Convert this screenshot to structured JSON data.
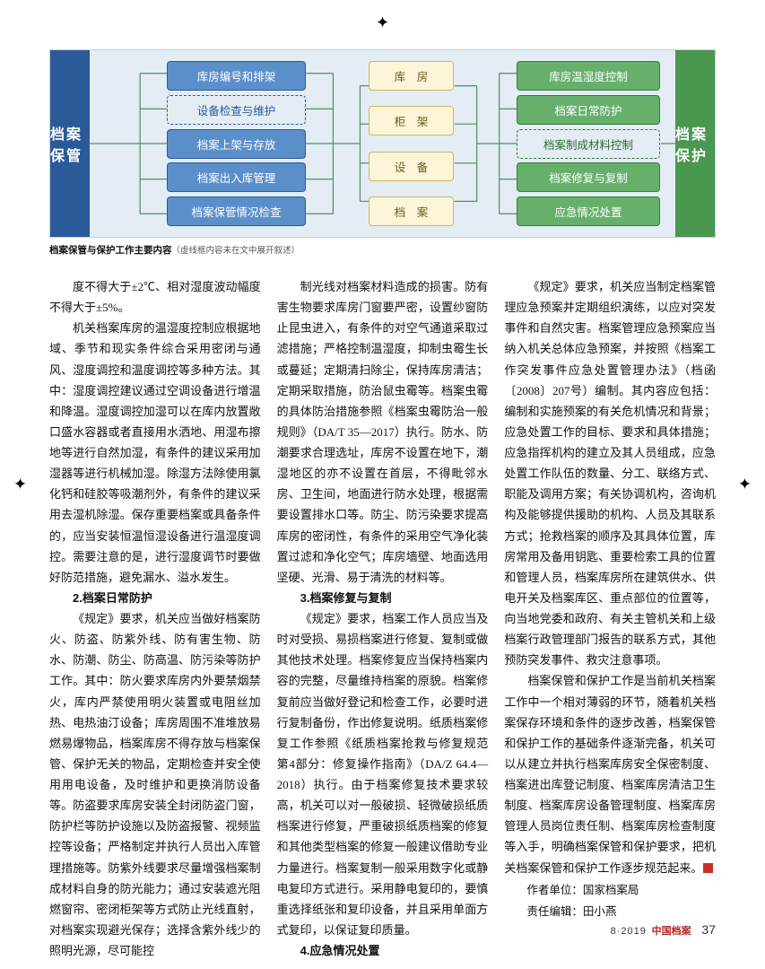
{
  "diagram": {
    "side_left": "档案保管",
    "side_right": "档案保护",
    "left_nodes": [
      "库房编号和排架",
      "设备检查与维护",
      "档案上架与存放",
      "档案出入库管理",
      "档案保管情况检查"
    ],
    "left_dashed": [
      false,
      true,
      false,
      false,
      false
    ],
    "mid_nodes": [
      "库　房",
      "柜　架",
      "设　备",
      "档　案"
    ],
    "right_nodes": [
      "库房温湿度控制",
      "档案日常防护",
      "档案制成材料控制",
      "档案修复与复制",
      "应急情况处置"
    ],
    "right_dashed": [
      false,
      false,
      true,
      false,
      false
    ],
    "colors": {
      "panel_bg": "#e3edf3",
      "panel_border": "#b8d4df",
      "blue": "#5b8fc9",
      "blue_border": "#2a5a98",
      "green": "#66b06c",
      "green_border": "#3a7a40",
      "yellow": "#fdf5d8",
      "yellow_border": "#c9b865",
      "line": "#5a8868"
    }
  },
  "caption": {
    "bold": "档案保管与保护工作主要内容",
    "note": "（虚线框内容未在文中展开叙述）"
  },
  "body": {
    "p0": "度不得大于±2℃、相对湿度波动幅度不得大于±5%。",
    "p1": "机关档案库房的温湿度控制应根据地域、季节和现实条件综合采用密闭与通风、湿度调控和温度调控等多种方法。其中：湿度调控建议通过空调设备进行增温和降温。湿度调控加湿可以在库内放置敞口盛水容器或者直接用水洒地、用湿布擦地等进行自然加湿，有条件的建议采用加湿器等进行机械加湿。除湿方法除使用氯化钙和硅胶等吸潮剂外，有条件的建议采用去湿机除湿。保存重要档案或具备条件的，应当安装恒温恒湿设备进行温湿度调控。需要注意的是，进行湿度调节时要做好防范措施，避免漏水、溢水发生。",
    "h2": "2.档案日常防护",
    "p2": "《规定》要求，机关应当做好档案防火、防盗、防紫外线、防有害生物、防水、防潮、防尘、防高温、防污染等防护工作。其中：防火要求库房内外要禁烟禁火，库内严禁使用明火装置或电阻丝加热、电热油汀设备；库房周围不准堆放易燃易爆物品，档案库房不得存放与档案保管、保护无关的物品，定期检查并安全使用用电设备，及时维护和更换消防设备等。防盗要求库房安装全封闭防盗门窗，防护栏等防护设施以及防盗报警、视频监控等设备；严格制定并执行人员出入库管理措施等。防紫外线要求尽量增强档案制成材料自身的防光能力；通过安装遮光阻燃窗帘、密闭柜架等方式防止光线直射，对档案实现避光保存；选择含紫外线少的照明光源，尽可能控",
    "p3": "制光线对档案材料造成的损害。防有害生物要求库房门窗要严密，设置纱窗防止昆虫进入，有条件的对空气通道采取过滤措施；严格控制温湿度，抑制虫霉生长或蔓延；定期清扫除尘，保持库房清洁；定期采取措施，防治鼠虫霉等。档案虫霉的具体防治措施参照《档案虫霉防治一般规则》（DA/T 35—2017）执行。防水、防潮要求合理选址，库房不设置在地下，潮湿地区的亦不设置在首层，不得毗邻水房、卫生间，地面进行防水处理，根据需要设置排水口等。防尘、防污染要求提高库房的密闭性，有条件的采用空气净化装置过滤和净化空气；库房墙壁、地面选用坚硬、光滑、易于清洗的材料等。",
    "h3": "3.档案修复与复制",
    "p4": "《规定》要求，档案工作人员应当及时对受损、易损档案进行修复、复制或做其他技术处理。档案修复应当保持档案内容的完整，尽量维持档案的原貌。档案修复前应当做好登记和检查工作，必要时进行复制备份，作出修复说明。纸质档案修复工作参照《纸质档案抢救与修复规范 第4部分：修复操作指南》（DA/Z 64.4—2018）执行。由于档案修复技术要求较高，机关可以对一般破损、轻微破损纸质档案进行修复，严重破损纸质档案的修复和其他类型档案的修复一般建议借助专业力量进行。档案复制一般采用数字化或静电复印方式进行。采用静电复印的，要慎重选择纸张和复印设备，并且采用单面方式复印，以保证复印质量。",
    "h4": "4.应急情况处置",
    "p5": "《规定》要求，机关应当制定档案管理应急预案并定期组织演练，以应对突发事件和自然灾害。档案管理应急预案应当纳入机关总体应急预案，并按照《档案工作突发事件应急处置管理办法》（档函〔2008〕207号）编制。其内容应包括：编制和实施预案的有关危机情况和背景；应急处置工作的目标、要求和具体措施；应急指挥机构的建立及其人员组成，应急处置工作队伍的数量、分工、联络方式、职能及调用方案；有关协调机构，咨询机构及能够提供援助的机构、人员及其联系方式；抢救档案的顺序及其具体位置，库房常用及备用钥匙、重要检索工具的位置和管理人员，档案库房所在建筑供水、供电开关及档案库区、重点部位的位置等，向当地党委和政府、有关主管机关和上级档案行政管理部门报告的联系方式，其他预防突发事件、救灾注意事项。",
    "p6": "档案保管和保护工作是当前机关档案工作中一个相对薄弱的环节，随着机关档案保存环境和条件的逐步改善，档案保管和保护工作的基础条件逐渐完备，机关可以从建立并执行档案库房安全保密制度、档案进出库登记制度、档案库房清洁卫生制度、档案库房设备管理制度、档案库房管理人员岗位责任制、档案库房检查制度等入手，明确档案保管和保护要求，把机关档案保管和保护工作逐步规范起来。",
    "sig1": "作者单位：国家档案局",
    "sig2": "责任编辑：田小燕"
  },
  "footer": {
    "issue": "8·2019",
    "mag": "中国档案",
    "page": "37"
  },
  "typography": {
    "body_font_size": 13,
    "line_height": 1.78,
    "columns": 3,
    "column_gap": 18
  }
}
